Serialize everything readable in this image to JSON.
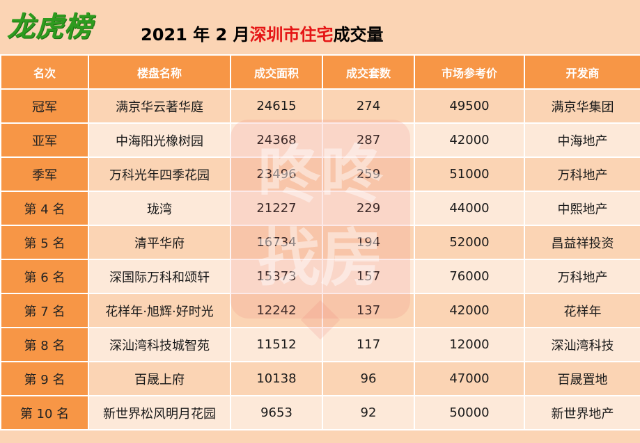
{
  "logo_text": "龙虎榜",
  "title": {
    "prefix": "2021 年 2 月",
    "highlight": "深圳市住宅",
    "suffix": "成交量"
  },
  "watermark_text": "咚咚找房",
  "colors": {
    "header_bg": "#f79646",
    "row_light": "#fde9d9",
    "row_dark": "#fbd4b4",
    "title_highlight": "#e51515",
    "logo": "#2e9b1f"
  },
  "table": {
    "headers": [
      "名次",
      "楼盘名称",
      "成交面积",
      "成交套数",
      "市场参考价",
      "开发商"
    ],
    "rows": [
      {
        "rank": "冠军",
        "name": "满京华云著华庭",
        "area": "24615",
        "units": "274",
        "price": "49500",
        "developer": "满京华集团"
      },
      {
        "rank": "亚军",
        "name": "中海阳光橡树园",
        "area": "24368",
        "units": "287",
        "price": "42000",
        "developer": "中海地产"
      },
      {
        "rank": "季军",
        "name": "万科光年四季花园",
        "area": "23496",
        "units": "259",
        "price": "51000",
        "developer": "万科地产"
      },
      {
        "rank": "第 4 名",
        "name": "珑湾",
        "area": "21227",
        "units": "229",
        "price": "44000",
        "developer": "中熙地产"
      },
      {
        "rank": "第 5 名",
        "name": "清平华府",
        "area": "16734",
        "units": "194",
        "price": "52000",
        "developer": "昌益祥投资"
      },
      {
        "rank": "第 6 名",
        "name": "深国际万科和颂轩",
        "area": "15373",
        "units": "157",
        "price": "76000",
        "developer": "万科地产"
      },
      {
        "rank": "第 7 名",
        "name": "花样年·旭辉·好时光",
        "area": "12242",
        "units": "137",
        "price": "42000",
        "developer": "花样年"
      },
      {
        "rank": "第 8 名",
        "name": "深汕湾科技城智苑",
        "area": "11512",
        "units": "117",
        "price": "12000",
        "developer": "深汕湾科技"
      },
      {
        "rank": "第 9 名",
        "name": "百晟上府",
        "area": "10138",
        "units": "96",
        "price": "47000",
        "developer": "百晟置地"
      },
      {
        "rank": "第 10 名",
        "name": "新世界松风明月花园",
        "area": "9653",
        "units": "92",
        "price": "50000",
        "developer": "新世界地产"
      }
    ]
  }
}
